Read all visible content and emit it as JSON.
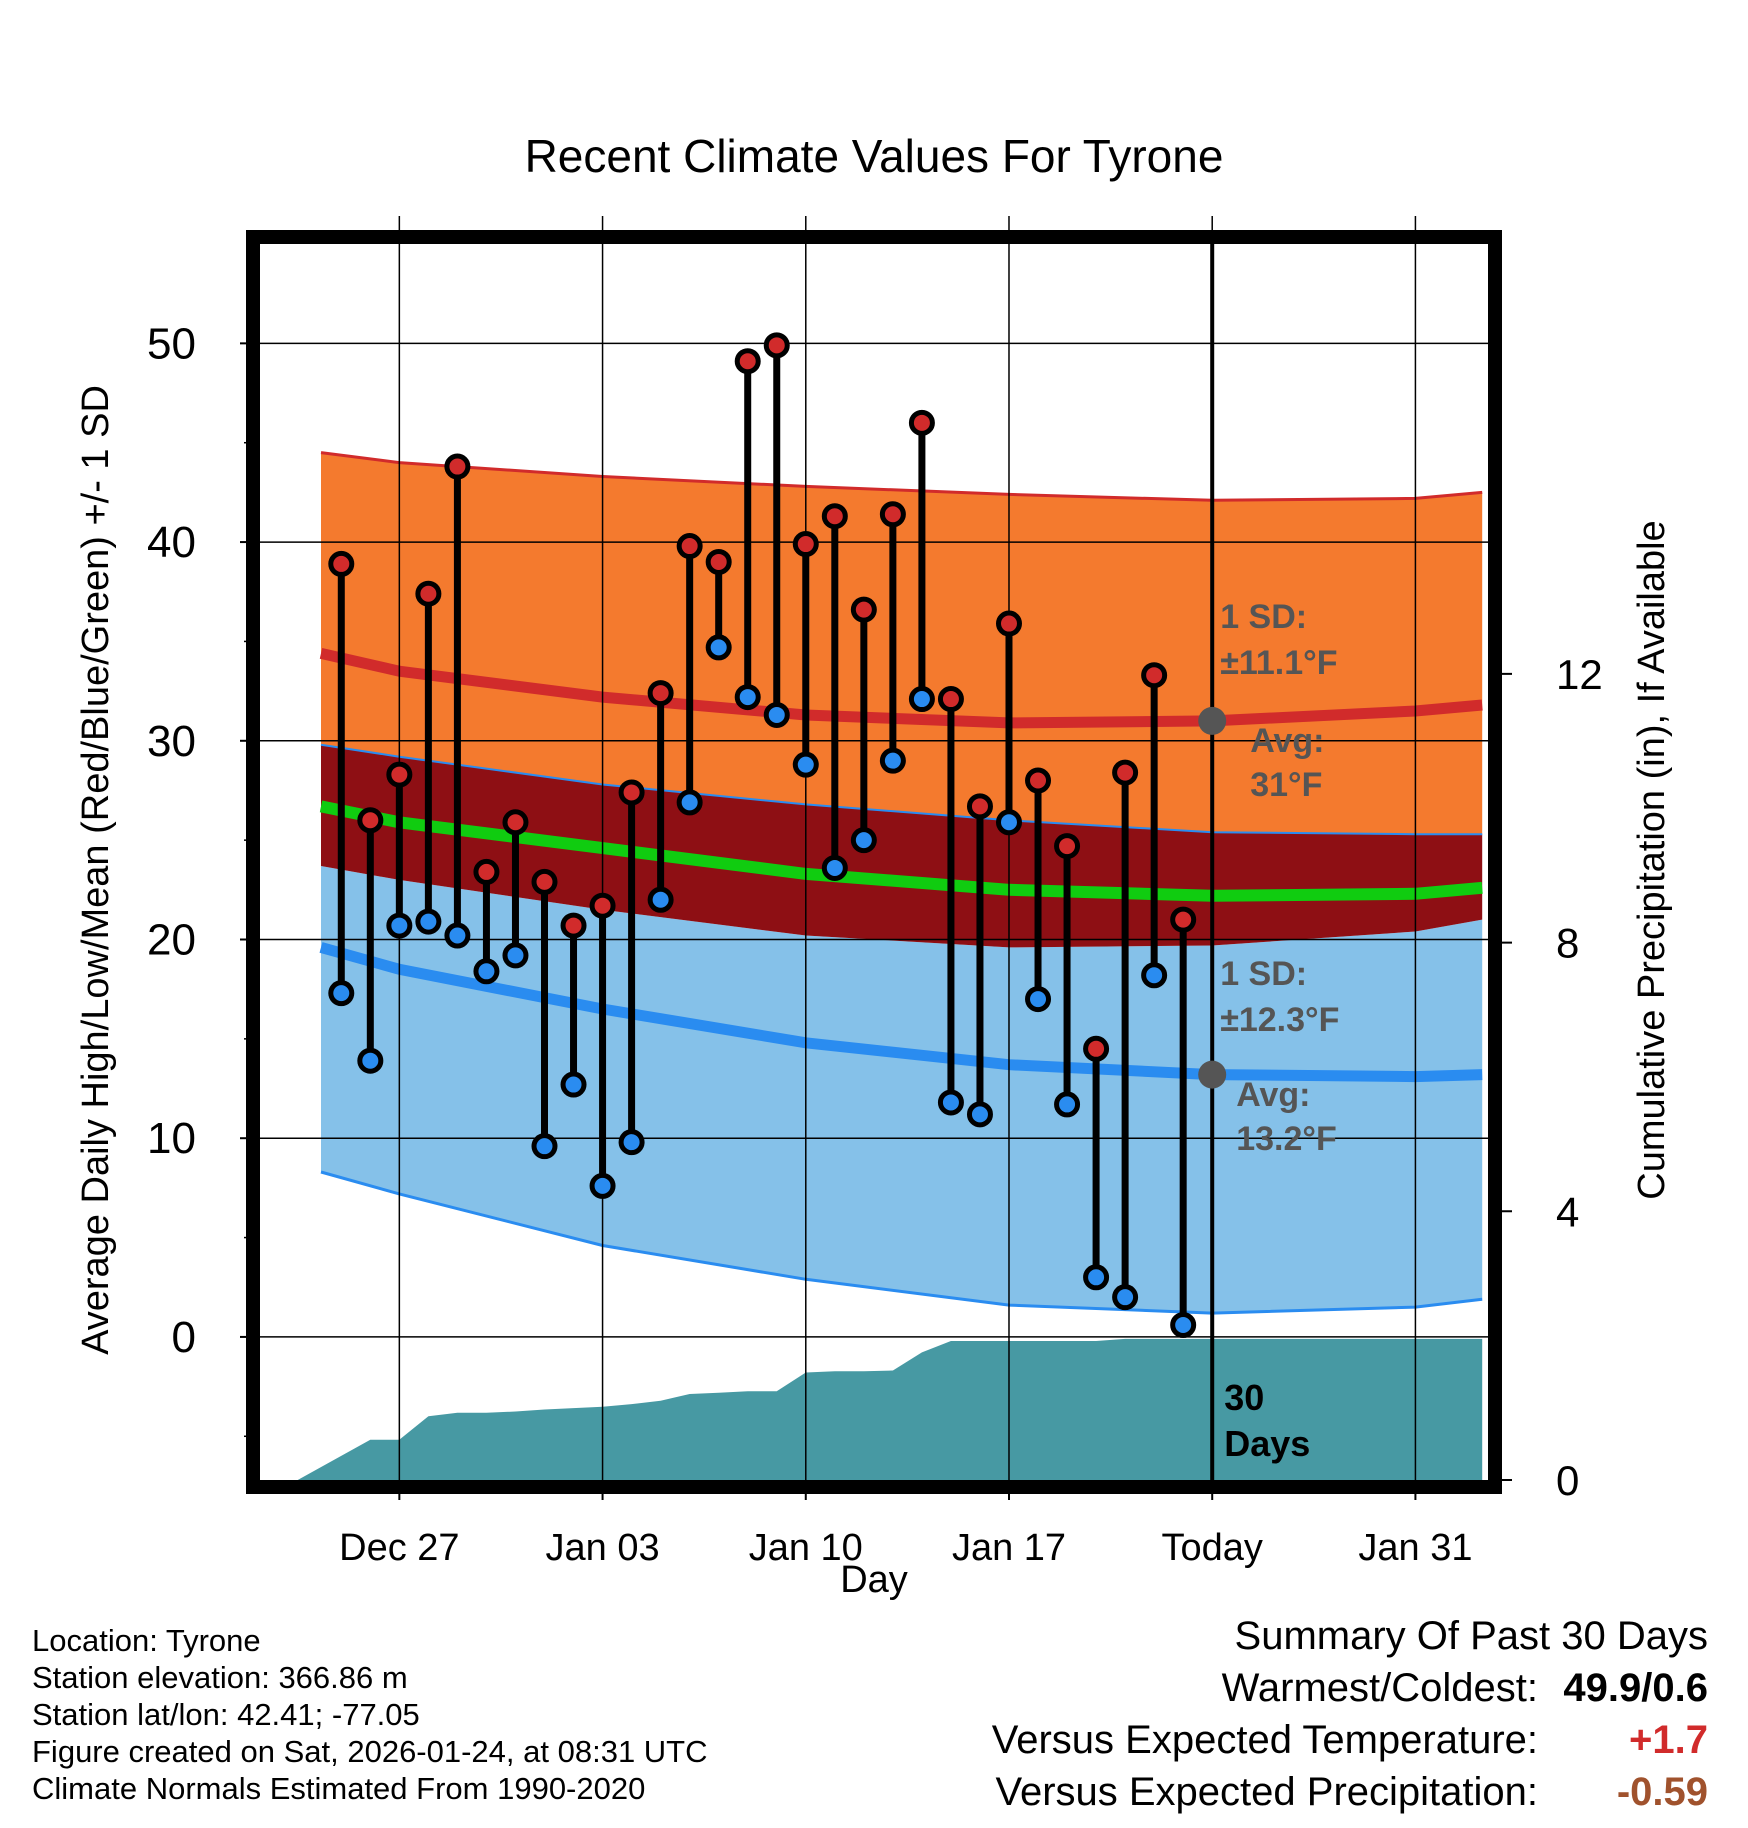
{
  "colors": {
    "max_sd_band": "#F47A2E",
    "overlap_band": "#8E0F14",
    "min_sd_band": "#85C1E9",
    "max_edge": "#D12B2B",
    "min_edge": "#2A8CF0",
    "normal_max_line": "#D12B2B",
    "normal_min_line": "#2A8CF0",
    "normal_mean_line": "#10CC10",
    "precip_fill": "#4799A3",
    "high_marker": "#D12B2B",
    "low_marker": "#2A8CF0",
    "avg_dot": "#555555",
    "annotation_text": "#555555",
    "warm_value": "#D12B2B",
    "precip_value": "#A0522D"
  },
  "chart_data": {
    "type": "line",
    "title": "Recent Climate Values For Tyrone",
    "xlabel": "Day",
    "ylabel": "Average Daily High/Low/Mean (Red/Blue/Green) +/- 1 SD",
    "y2label": "Cumulative Precipitation (in), If Available",
    "ylim": [
      -7.2,
      55
    ],
    "y2lim": [
      0,
      18.4
    ],
    "xlim": [
      -4.8,
      37.5
    ],
    "grid": true,
    "xticks": [
      {
        "day": 0,
        "label": "Dec 27"
      },
      {
        "day": 7,
        "label": "Jan 03"
      },
      {
        "day": 14,
        "label": "Jan 10"
      },
      {
        "day": 21,
        "label": "Jan 17"
      },
      {
        "day": 28,
        "label": "Today"
      },
      {
        "day": 35,
        "label": "Jan 31"
      }
    ],
    "yticks": [
      0,
      10,
      20,
      30,
      40,
      50
    ],
    "y2ticks": [
      0,
      4,
      8,
      12
    ],
    "today_day": 28,
    "normals_x": [
      -2.7,
      0,
      7,
      14,
      21,
      28,
      35,
      37.3
    ],
    "normal_max": [
      34.4,
      33.5,
      32.2,
      31.3,
      30.9,
      31.0,
      31.5,
      31.8
    ],
    "normal_max_plus_sd": [
      44.5,
      44.0,
      43.3,
      42.8,
      42.4,
      42.1,
      42.2,
      42.5
    ],
    "normal_max_minus_sd": [
      29.8,
      29.2,
      27.8,
      26.8,
      26.0,
      25.4,
      25.3,
      25.3
    ],
    "normal_min": [
      19.6,
      18.5,
      16.5,
      14.8,
      13.7,
      13.2,
      13.1,
      13.2
    ],
    "normal_min_plus_sd": [
      23.7,
      23.0,
      21.5,
      20.2,
      19.6,
      19.7,
      20.4,
      21.0
    ],
    "normal_min_minus_sd": [
      8.3,
      7.2,
      4.6,
      2.9,
      1.6,
      1.2,
      1.5,
      1.9
    ],
    "normal_mean": [
      26.7,
      25.9,
      24.6,
      23.3,
      22.5,
      22.2,
      22.3,
      22.6
    ],
    "series": [
      {
        "name": "Daily High",
        "x": [
          -2,
          -1,
          0,
          1,
          2,
          3,
          4,
          5,
          6,
          7,
          8,
          9,
          10,
          11,
          12,
          13,
          14,
          15,
          16,
          17,
          18,
          19,
          20,
          21,
          22,
          23,
          24,
          25,
          26,
          27
        ],
        "values": [
          38.9,
          26.0,
          28.3,
          37.4,
          43.8,
          23.4,
          25.9,
          22.9,
          20.7,
          21.7,
          27.4,
          32.4,
          39.8,
          39.0,
          49.1,
          49.9,
          39.9,
          41.3,
          36.6,
          41.4,
          46.0,
          32.1,
          26.7,
          35.9,
          28.0,
          24.7,
          14.5,
          28.4,
          33.3,
          21.0
        ]
      },
      {
        "name": "Daily Low",
        "x": [
          -2,
          -1,
          0,
          1,
          2,
          3,
          4,
          5,
          6,
          7,
          8,
          9,
          10,
          11,
          12,
          13,
          14,
          15,
          16,
          17,
          18,
          19,
          20,
          21,
          22,
          23,
          24,
          25,
          26,
          27
        ],
        "values": [
          17.3,
          13.9,
          20.7,
          20.9,
          20.2,
          18.4,
          19.2,
          9.6,
          12.7,
          7.6,
          9.8,
          22.0,
          26.9,
          34.7,
          32.2,
          31.3,
          28.8,
          23.6,
          25.0,
          29.0,
          32.1,
          11.8,
          11.2,
          25.9,
          17.0,
          11.7,
          3.0,
          2.0,
          18.2,
          0.6
        ]
      },
      {
        "name": "Cumulative Precipitation",
        "x": [
          -3.5,
          -1,
          0,
          1,
          2,
          3,
          4,
          5,
          6,
          7,
          8,
          9,
          10,
          11,
          12,
          13,
          14,
          15,
          16,
          17,
          18,
          19,
          20,
          21,
          22,
          23,
          24,
          25,
          26,
          27,
          28,
          37.3
        ],
        "values": [
          0,
          0.6,
          0.6,
          0.95,
          1.0,
          1.0,
          1.02,
          1.05,
          1.07,
          1.09,
          1.13,
          1.18,
          1.28,
          1.3,
          1.32,
          1.32,
          1.6,
          1.62,
          1.62,
          1.63,
          1.9,
          2.07,
          2.07,
          2.07,
          2.07,
          2.07,
          2.07,
          2.1,
          2.1,
          2.1,
          2.1,
          2.1
        ]
      }
    ],
    "annotations": {
      "max_sd_label": "1 SD:",
      "max_sd_value": "±11.1°F",
      "max_avg_label": "Avg:",
      "max_avg_value": "31°F",
      "min_sd_label": "1 SD:",
      "min_sd_value": "±12.3°F",
      "min_avg_label": "Avg:",
      "min_avg_value": "13.2°F",
      "days_count": "30",
      "days_label": "Days"
    }
  },
  "footer": {
    "location": "Location: Tyrone",
    "elevation": "Station elevation: 366.86 m",
    "latlon": "Station lat/lon: 42.41; -77.05",
    "created": "Figure created on Sat, 2026-01-24, at 08:31 UTC",
    "normals": "Climate Normals Estimated From 1990-2020"
  },
  "summary": {
    "title": "Summary Of Past 30 Days",
    "warmest_coldest_label": "Warmest/Coldest:",
    "warmest_coldest_value": "49.9/0.6",
    "temp_label": "Versus Expected Temperature:",
    "temp_value": "+1.7",
    "precip_label": "Versus Expected Precipitation:",
    "precip_value": "-0.59"
  }
}
